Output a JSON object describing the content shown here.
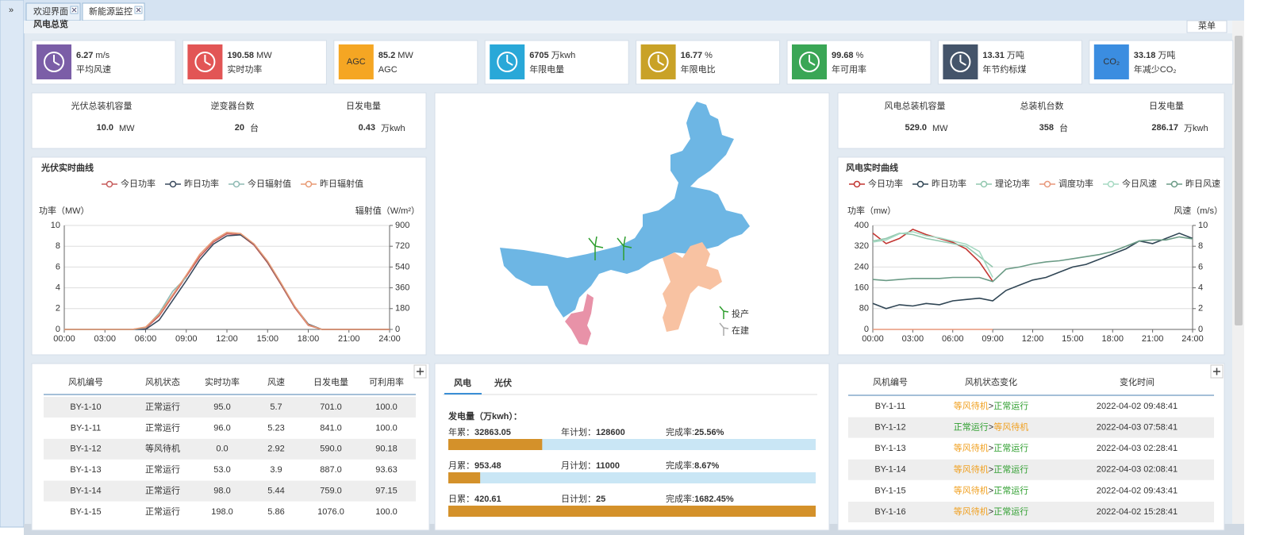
{
  "sidebar_toggle": "»",
  "tabs": [
    "欢迎界面",
    "新能源监控"
  ],
  "section_title": "风电总览",
  "menu_label": "菜单",
  "kpis": [
    {
      "value": 6.27,
      "unit": "m/s",
      "label": "平均风速",
      "color": "#7b5ea7"
    },
    {
      "value": 190.58,
      "unit": "MW",
      "label": "实时功率",
      "color": "#e25555"
    },
    {
      "value": 85.2,
      "unit": "MW",
      "label": "AGC",
      "color": "#f5a623",
      "icon_text": "AGC"
    },
    {
      "value": 6705,
      "unit": "万kwh",
      "label": "年限电量",
      "color": "#29a8d8"
    },
    {
      "value": 16.77,
      "unit": "%",
      "label": "年限电比",
      "color": "#c9a227"
    },
    {
      "value": 99.68,
      "unit": "%",
      "label": "年可用率",
      "color": "#3aa655"
    },
    {
      "value": 13.31,
      "unit": "万吨",
      "label": "年节约标煤",
      "color": "#44546a"
    },
    {
      "value": 33.18,
      "unit": "万吨",
      "label": "年减少CO₂",
      "color": "#3b8de0",
      "icon_text": "CO₂"
    }
  ],
  "pv_summary": [
    {
      "label": "光伏总装机容量",
      "value": "10.0",
      "unit": "MW",
      "color": "#1f4e79"
    },
    {
      "label": "逆变器台数",
      "value": "20",
      "unit": "台",
      "color": "#f0a030"
    },
    {
      "label": "日发电量",
      "value": "0.43",
      "unit": "万kwh",
      "color": "#1a6e6e"
    }
  ],
  "wind_summary": [
    {
      "label": "风电总装机容量",
      "value": "529.0",
      "unit": "MW",
      "color": "#1f4e79"
    },
    {
      "label": "总装机台数",
      "value": "358",
      "unit": "台",
      "color": "#f0a030"
    },
    {
      "label": "日发电量",
      "value": "286.17",
      "unit": "万kwh",
      "color": "#1a6e6e"
    }
  ],
  "map_legend": [
    "投产",
    "在建"
  ],
  "pv_chart": {
    "type": "line",
    "title": "光伏实时曲线",
    "y_label": "功率（MW）",
    "y2_label": "辐射值（W/m²）",
    "x": [
      0,
      1,
      2,
      3,
      4,
      5,
      6,
      7,
      8,
      9,
      10,
      11,
      12,
      13,
      14,
      15,
      16,
      17,
      18,
      19,
      20,
      21,
      22,
      23,
      24
    ],
    "xlim": [
      0,
      24
    ],
    "xticks": [
      {
        "value": 0,
        "label": "00:00"
      },
      {
        "value": 3,
        "label": "03:00"
      },
      {
        "value": 6,
        "label": "06:00"
      },
      {
        "value": 9,
        "label": "09:00"
      },
      {
        "value": 12,
        "label": "12:00"
      },
      {
        "value": 15,
        "label": "15:00"
      },
      {
        "value": 18,
        "label": "18:00"
      },
      {
        "value": 21,
        "label": "21:00"
      },
      {
        "value": 24,
        "label": "24:00"
      }
    ],
    "ylim": [
      0,
      10
    ],
    "yticks": [
      0,
      2,
      4,
      6,
      8,
      10
    ],
    "y2lim": [
      0,
      900
    ],
    "y2ticks": [
      0,
      180,
      360,
      540,
      720,
      900
    ],
    "grid": true,
    "series": [
      {
        "name": "今日功率",
        "color": "#c65b5b",
        "values": [
          0,
          0,
          0,
          0,
          0,
          0,
          0.1,
          1.3,
          3.2,
          5.1,
          7.0,
          8.4,
          9.2,
          9.1,
          8.1,
          6.4,
          4.3,
          2.1,
          0.4,
          0,
          0,
          0,
          0,
          0,
          0
        ]
      },
      {
        "name": "昨日功率",
        "color": "#3a4a5e",
        "values": [
          0,
          0,
          0,
          0,
          0,
          0,
          0,
          0.9,
          2.8,
          4.7,
          6.7,
          8.2,
          9.0,
          9.1,
          8.2,
          6.5,
          4.4,
          2.2,
          0.5,
          0,
          0,
          0,
          0,
          0,
          0
        ]
      },
      {
        "name": "今日辐射值",
        "color": "#8fbab4",
        "axis": "y2",
        "values": [
          0,
          0,
          0,
          0,
          0,
          0,
          15,
          140,
          330,
          450,
          null,
          null,
          null,
          null,
          null,
          null,
          null,
          null,
          null,
          null,
          null,
          null,
          null,
          null,
          null
        ]
      },
      {
        "name": "昨日辐射值",
        "color": "#e89a74",
        "axis": "y2",
        "values": [
          0,
          0,
          0,
          0,
          0,
          0,
          20,
          130,
          300,
          470,
          650,
          770,
          840,
          830,
          740,
          590,
          400,
          200,
          40,
          0,
          0,
          0,
          0,
          0,
          0
        ]
      }
    ]
  },
  "wind_chart": {
    "type": "line",
    "title": "风电实时曲线",
    "y_label": "功率（mw）",
    "y2_label": "风速（m/s）",
    "x": [
      0,
      1,
      2,
      3,
      4,
      5,
      6,
      7,
      8,
      9,
      10,
      11,
      12,
      13,
      14,
      15,
      16,
      17,
      18,
      19,
      20,
      21,
      22,
      23,
      24
    ],
    "xlim": [
      0,
      24
    ],
    "xticks": [
      {
        "value": 0,
        "label": "00:00"
      },
      {
        "value": 3,
        "label": "03:00"
      },
      {
        "value": 6,
        "label": "06:00"
      },
      {
        "value": 9,
        "label": "09:00"
      },
      {
        "value": 12,
        "label": "12:00"
      },
      {
        "value": 15,
        "label": "15:00"
      },
      {
        "value": 18,
        "label": "18:00"
      },
      {
        "value": 21,
        "label": "21:00"
      },
      {
        "value": 24,
        "label": "24:00"
      }
    ],
    "ylim": [
      0,
      400
    ],
    "yticks": [
      0,
      80,
      160,
      240,
      320,
      400
    ],
    "y2lim": [
      0,
      10
    ],
    "y2ticks": [
      0,
      2,
      4,
      6,
      8,
      10
    ],
    "grid": true,
    "series": [
      {
        "name": "今日功率",
        "color": "#c23531",
        "values": [
          370,
          330,
          350,
          385,
          365,
          350,
          335,
          310,
          260,
          185,
          null,
          null,
          null,
          null,
          null,
          null,
          null,
          null,
          null,
          null,
          null,
          null,
          null,
          null,
          null
        ]
      },
      {
        "name": "昨日功率",
        "color": "#2f4554",
        "values": [
          100,
          80,
          95,
          90,
          100,
          95,
          110,
          115,
          120,
          110,
          150,
          170,
          190,
          200,
          220,
          240,
          250,
          270,
          290,
          310,
          340,
          330,
          350,
          370,
          350
        ]
      },
      {
        "name": "理论功率",
        "color": "#91c7ae",
        "values": [
          340,
          350,
          370,
          365,
          350,
          340,
          330,
          320,
          280,
          240,
          null,
          null,
          null,
          null,
          null,
          null,
          null,
          null,
          null,
          null,
          null,
          null,
          null,
          null,
          null
        ]
      },
      {
        "name": "调度功率",
        "color": "#e8977a",
        "values": [
          0,
          0,
          0,
          0,
          0,
          0,
          0,
          0,
          0,
          0,
          null,
          null,
          null,
          null,
          null,
          null,
          null,
          null,
          null,
          null,
          null,
          null,
          null,
          null,
          null
        ]
      },
      {
        "name": "今日风速",
        "color": "#a5d9c2",
        "axis": "y2",
        "values": [
          8.4,
          8.6,
          9.2,
          9.4,
          9.0,
          8.8,
          8.5,
          8.2,
          7.5,
          5.0,
          null,
          null,
          null,
          null,
          null,
          null,
          null,
          null,
          null,
          null,
          null,
          null,
          null,
          null,
          null
        ]
      },
      {
        "name": "昨日风速",
        "color": "#6b9b86",
        "axis": "y2",
        "values": [
          4.8,
          4.7,
          4.8,
          4.9,
          4.9,
          4.9,
          5.0,
          5.0,
          5.0,
          4.6,
          5.8,
          6.0,
          6.3,
          6.5,
          6.6,
          6.8,
          7.0,
          7.2,
          7.5,
          8.0,
          8.5,
          8.6,
          8.6,
          8.9,
          8.7
        ]
      }
    ]
  },
  "fan_table": {
    "headers": [
      "风机编号",
      "风机状态",
      "实时功率",
      "风速",
      "日发电量",
      "可利用率"
    ],
    "status_colors": {
      "正常运行": "#2e9e2e",
      "等风待机": "#f0a020"
    },
    "rows": [
      [
        "BY-1-10",
        "正常运行",
        "95.0",
        "5.7",
        "701.0",
        "100.0"
      ],
      [
        "BY-1-11",
        "正常运行",
        "96.0",
        "5.23",
        "841.0",
        "100.0"
      ],
      [
        "BY-1-12",
        "等风待机",
        "0.0",
        "2.92",
        "590.0",
        "90.18"
      ],
      [
        "BY-1-13",
        "正常运行",
        "53.0",
        "3.9",
        "887.0",
        "93.63"
      ],
      [
        "BY-1-14",
        "正常运行",
        "98.0",
        "5.44",
        "759.0",
        "97.15"
      ],
      [
        "BY-1-15",
        "正常运行",
        "198.0",
        "5.86",
        "1076.0",
        "100.0"
      ]
    ]
  },
  "generation": {
    "tabs": [
      "风电",
      "光伏"
    ],
    "subtitle": "发电量（万kwh）：",
    "rows": [
      {
        "label": "年累：",
        "value": 32863.05,
        "plan_label": "年计划：",
        "plan": 128600,
        "rate_label": "完成率:",
        "rate": "25.56%"
      },
      {
        "label": "月累：",
        "value": 953.48,
        "plan_label": "月计划：",
        "plan": 11000,
        "rate_label": "完成率:",
        "rate": "8.67%"
      },
      {
        "label": "日累：",
        "value": 420.61,
        "plan_label": "日计划：",
        "plan": 25,
        "rate_label": "完成率:",
        "rate": "1682.45%"
      }
    ]
  },
  "change_table": {
    "headers": [
      "风机编号",
      "风机状态变化",
      "变化时间"
    ],
    "arrow": ">",
    "rows": [
      [
        "BY-1-11",
        "等风待机",
        "正常运行",
        "2022-04-02 09:48:41"
      ],
      [
        "BY-1-12",
        "正常运行",
        "等风待机",
        "2022-04-03 07:58:41"
      ],
      [
        "BY-1-13",
        "等风待机",
        "正常运行",
        "2022-04-03 02:28:41"
      ],
      [
        "BY-1-14",
        "等风待机",
        "正常运行",
        "2022-04-03 02:08:41"
      ],
      [
        "BY-1-15",
        "等风待机",
        "正常运行",
        "2022-04-02 09:43:41"
      ],
      [
        "BY-1-16",
        "等风待机",
        "正常运行",
        "2022-04-02 15:28:41"
      ]
    ]
  }
}
